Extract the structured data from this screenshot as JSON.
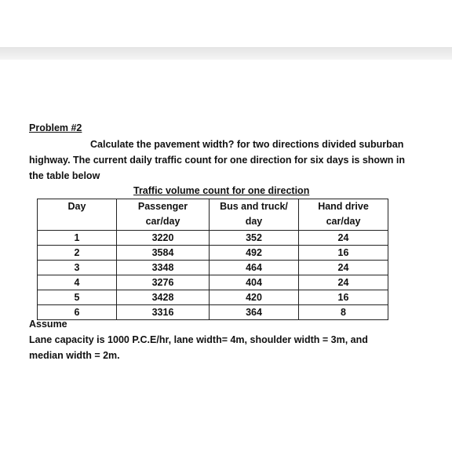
{
  "problem": {
    "heading": "Problem #2",
    "paragraph": [
      "Calculate the pavement width? for two directions divided suburban",
      "highway. The current daily traffic count for one direction for six days is shown in",
      "the table below"
    ]
  },
  "table": {
    "caption": "Traffic volume count for one direction",
    "header": [
      [
        "Day"
      ],
      [
        "Passenger",
        "car/day"
      ],
      [
        "Bus and truck/",
        "day"
      ],
      [
        "Hand drive",
        "car/day"
      ]
    ],
    "rows": [
      [
        1,
        3220,
        352,
        24
      ],
      [
        2,
        3584,
        492,
        16
      ],
      [
        3,
        3348,
        464,
        24
      ],
      [
        4,
        3276,
        404,
        24
      ],
      [
        5,
        3428,
        420,
        16
      ],
      [
        6,
        3316,
        364,
        8
      ]
    ]
  },
  "assume": {
    "title": "Assume",
    "lines": [
      "Lane capacity is 1000 P.C.E/hr, lane width= 4m, shoulder width = 3m, and",
      "median width = 2m."
    ]
  }
}
